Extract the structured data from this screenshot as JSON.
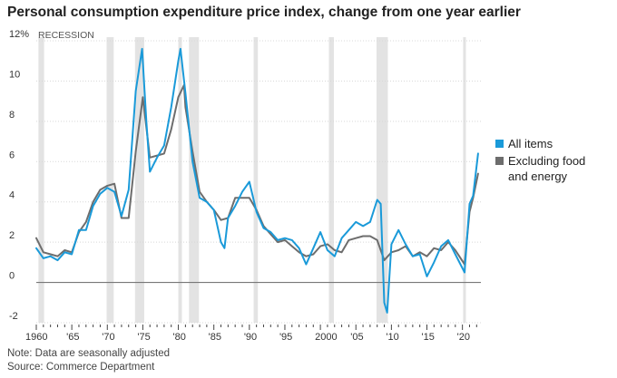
{
  "title": "Personal consumption expenditure price index, change from one year earlier",
  "recession_label": "RECESSION",
  "notes": {
    "line1": "Note: Data are seasonally adjusted",
    "line2": "Source: Commerce Department"
  },
  "legend": [
    {
      "label": "All items",
      "color": "#1a9ad9"
    },
    {
      "label": "Excluding food",
      "label2": "and energy",
      "color": "#6d6d6d"
    }
  ],
  "chart_data": {
    "type": "line",
    "title": "Personal consumption expenditure price index, change from one year earlier",
    "xlabel": "",
    "ylabel": "",
    "xlim": [
      1960,
      2022.6
    ],
    "ylim": [
      -2,
      12
    ],
    "y_ticks": [
      -2,
      0,
      2,
      4,
      6,
      8,
      10,
      12
    ],
    "y_tick_labels": [
      "-2",
      "0",
      "2",
      "4",
      "6",
      "8",
      "10",
      "12%"
    ],
    "x_ticks": [
      1960,
      1965,
      1970,
      1975,
      1980,
      1985,
      1990,
      1995,
      2000,
      2005,
      2010,
      2015,
      2020
    ],
    "x_tick_labels": [
      "1960",
      "'65",
      "'70",
      "'75",
      "'80",
      "'85",
      "'90",
      "'95",
      "2000",
      "'05",
      "'10",
      "'15",
      "'20"
    ],
    "recessions": [
      [
        1960.3,
        1961.1
      ],
      [
        1969.9,
        1970.9
      ],
      [
        1973.9,
        1975.2
      ],
      [
        1980.0,
        1980.5
      ],
      [
        1981.5,
        1982.9
      ],
      [
        1990.6,
        1991.2
      ],
      [
        2001.2,
        2001.9
      ],
      [
        2007.9,
        2009.5
      ],
      [
        2020.1,
        2020.4
      ]
    ],
    "series": [
      {
        "name": "All items",
        "color": "#1a9ad9",
        "points": [
          [
            1960,
            1.7
          ],
          [
            1961,
            1.2
          ],
          [
            1962,
            1.3
          ],
          [
            1963,
            1.1
          ],
          [
            1964,
            1.5
          ],
          [
            1965,
            1.4
          ],
          [
            1966,
            2.6
          ],
          [
            1967,
            2.6
          ],
          [
            1968,
            3.8
          ],
          [
            1969,
            4.4
          ],
          [
            1970,
            4.7
          ],
          [
            1971,
            4.5
          ],
          [
            1972,
            3.3
          ],
          [
            1973,
            4.6
          ],
          [
            1974,
            9.5
          ],
          [
            1974.9,
            11.6
          ],
          [
            1975.5,
            8.0
          ],
          [
            1976,
            5.5
          ],
          [
            1977,
            6.2
          ],
          [
            1978,
            6.8
          ],
          [
            1979,
            8.7
          ],
          [
            1980,
            11.0
          ],
          [
            1980.3,
            11.6
          ],
          [
            1981,
            9.4
          ],
          [
            1982,
            6.0
          ],
          [
            1983,
            4.2
          ],
          [
            1984,
            4.0
          ],
          [
            1985,
            3.6
          ],
          [
            1986,
            2.0
          ],
          [
            1986.5,
            1.7
          ],
          [
            1987,
            3.2
          ],
          [
            1988,
            3.8
          ],
          [
            1989,
            4.5
          ],
          [
            1990,
            5.0
          ],
          [
            1991,
            3.5
          ],
          [
            1992,
            2.7
          ],
          [
            1993,
            2.5
          ],
          [
            1994,
            2.1
          ],
          [
            1995,
            2.2
          ],
          [
            1996,
            2.1
          ],
          [
            1997,
            1.7
          ],
          [
            1998,
            0.9
          ],
          [
            1999,
            1.7
          ],
          [
            2000,
            2.5
          ],
          [
            2001,
            1.6
          ],
          [
            2002,
            1.3
          ],
          [
            2003,
            2.2
          ],
          [
            2004,
            2.6
          ],
          [
            2005,
            3.0
          ],
          [
            2006,
            2.8
          ],
          [
            2007,
            3.0
          ],
          [
            2008,
            4.1
          ],
          [
            2008.5,
            3.9
          ],
          [
            2009,
            -1.0
          ],
          [
            2009.4,
            -1.5
          ],
          [
            2010,
            1.9
          ],
          [
            2011,
            2.6
          ],
          [
            2012,
            1.9
          ],
          [
            2013,
            1.3
          ],
          [
            2014,
            1.4
          ],
          [
            2015,
            0.3
          ],
          [
            2016,
            1.0
          ],
          [
            2017,
            1.8
          ],
          [
            2018,
            2.1
          ],
          [
            2019,
            1.4
          ],
          [
            2020.3,
            0.5
          ],
          [
            2021,
            3.9
          ],
          [
            2021.5,
            4.3
          ],
          [
            2022.2,
            6.4
          ]
        ]
      },
      {
        "name": "Excluding food and energy",
        "color": "#6d6d6d",
        "points": [
          [
            1960,
            2.2
          ],
          [
            1961,
            1.5
          ],
          [
            1962,
            1.4
          ],
          [
            1963,
            1.3
          ],
          [
            1964,
            1.6
          ],
          [
            1965,
            1.5
          ],
          [
            1966,
            2.5
          ],
          [
            1967,
            3.0
          ],
          [
            1968,
            4.0
          ],
          [
            1969,
            4.6
          ],
          [
            1970,
            4.8
          ],
          [
            1971,
            4.9
          ],
          [
            1972,
            3.2
          ],
          [
            1973,
            3.2
          ],
          [
            1974,
            6.5
          ],
          [
            1975,
            9.2
          ],
          [
            1976,
            6.2
          ],
          [
            1977,
            6.3
          ],
          [
            1978,
            6.4
          ],
          [
            1979,
            7.6
          ],
          [
            1980,
            9.2
          ],
          [
            1980.8,
            9.8
          ],
          [
            1981,
            8.7
          ],
          [
            1982,
            6.5
          ],
          [
            1983,
            4.5
          ],
          [
            1984,
            4.0
          ],
          [
            1985,
            3.6
          ],
          [
            1986,
            3.1
          ],
          [
            1987,
            3.2
          ],
          [
            1988,
            4.2
          ],
          [
            1989,
            4.2
          ],
          [
            1990,
            4.2
          ],
          [
            1991,
            3.6
          ],
          [
            1992,
            2.8
          ],
          [
            1993,
            2.4
          ],
          [
            1994,
            2.0
          ],
          [
            1995,
            2.1
          ],
          [
            1996,
            1.8
          ],
          [
            1997,
            1.5
          ],
          [
            1998,
            1.3
          ],
          [
            1999,
            1.4
          ],
          [
            2000,
            1.8
          ],
          [
            2001,
            1.9
          ],
          [
            2002,
            1.6
          ],
          [
            2003,
            1.5
          ],
          [
            2004,
            2.1
          ],
          [
            2005,
            2.2
          ],
          [
            2006,
            2.3
          ],
          [
            2007,
            2.3
          ],
          [
            2008,
            2.1
          ],
          [
            2009,
            1.1
          ],
          [
            2010,
            1.5
          ],
          [
            2011,
            1.6
          ],
          [
            2012,
            1.8
          ],
          [
            2013,
            1.3
          ],
          [
            2014,
            1.5
          ],
          [
            2015,
            1.3
          ],
          [
            2016,
            1.7
          ],
          [
            2017,
            1.6
          ],
          [
            2018,
            2.0
          ],
          [
            2019,
            1.6
          ],
          [
            2020.3,
            0.9
          ],
          [
            2021,
            3.5
          ],
          [
            2021.5,
            4.2
          ],
          [
            2022.2,
            5.4
          ]
        ]
      }
    ]
  }
}
